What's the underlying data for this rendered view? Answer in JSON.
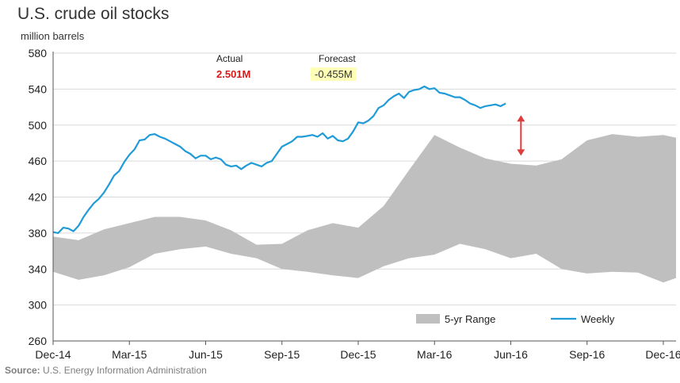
{
  "title": "U.S. crude oil stocks",
  "ylabel": "million barrels",
  "source_label": "Source:",
  "source_text": "U.S. Energy Information Administration",
  "annotations": {
    "actual_label": "Actual",
    "actual_value": "2.501M",
    "forecast_label": "Forecast",
    "forecast_value": "-0.455M"
  },
  "colors": {
    "weekly": "#1f9bd7",
    "range": "#bfbfbf",
    "arrow": "#e03c3c"
  },
  "chart_data": {
    "type": "line",
    "title": "U.S. crude oil stocks",
    "ylabel": "million barrels",
    "ylim": [
      260,
      580
    ],
    "yticks": [
      260,
      300,
      340,
      380,
      420,
      460,
      500,
      540,
      580
    ],
    "xlim": [
      0,
      24.5
    ],
    "xticks": [
      {
        "x": 0,
        "label": "Dec-14"
      },
      {
        "x": 3,
        "label": "Mar-15"
      },
      {
        "x": 6,
        "label": "Jun-15"
      },
      {
        "x": 9,
        "label": "Sep-15"
      },
      {
        "x": 12,
        "label": "Dec-15"
      },
      {
        "x": 15,
        "label": "Mar-16"
      },
      {
        "x": 18,
        "label": "Jun-16"
      },
      {
        "x": 21,
        "label": "Sep-16"
      },
      {
        "x": 24,
        "label": "Dec-16"
      }
    ],
    "grid": "horizontal",
    "legend_position": "bottom-right",
    "series": [
      {
        "name": "Weekly",
        "type": "line",
        "points": [
          [
            0,
            381
          ],
          [
            0.2,
            380
          ],
          [
            0.4,
            386
          ],
          [
            0.6,
            385
          ],
          [
            0.8,
            382
          ],
          [
            1.0,
            388
          ],
          [
            1.2,
            398
          ],
          [
            1.4,
            406
          ],
          [
            1.6,
            413
          ],
          [
            1.8,
            418
          ],
          [
            2.0,
            425
          ],
          [
            2.2,
            434
          ],
          [
            2.4,
            444
          ],
          [
            2.6,
            449
          ],
          [
            2.8,
            459
          ],
          [
            3.0,
            467
          ],
          [
            3.2,
            473
          ],
          [
            3.4,
            483
          ],
          [
            3.6,
            484
          ],
          [
            3.8,
            489
          ],
          [
            4.0,
            490
          ],
          [
            4.2,
            487
          ],
          [
            4.4,
            485
          ],
          [
            4.6,
            482
          ],
          [
            4.8,
            479
          ],
          [
            5.0,
            476
          ],
          [
            5.2,
            471
          ],
          [
            5.4,
            468
          ],
          [
            5.6,
            463
          ],
          [
            5.8,
            466
          ],
          [
            6.0,
            466
          ],
          [
            6.2,
            462
          ],
          [
            6.4,
            464
          ],
          [
            6.6,
            462
          ],
          [
            6.8,
            456
          ],
          [
            7.0,
            454
          ],
          [
            7.2,
            455
          ],
          [
            7.4,
            451
          ],
          [
            7.6,
            455
          ],
          [
            7.8,
            458
          ],
          [
            8.0,
            456
          ],
          [
            8.2,
            454
          ],
          [
            8.4,
            458
          ],
          [
            8.6,
            460
          ],
          [
            8.8,
            468
          ],
          [
            9.0,
            476
          ],
          [
            9.2,
            479
          ],
          [
            9.4,
            482
          ],
          [
            9.6,
            487
          ],
          [
            9.8,
            487
          ],
          [
            10.0,
            488
          ],
          [
            10.2,
            489
          ],
          [
            10.4,
            487
          ],
          [
            10.6,
            491
          ],
          [
            10.8,
            485
          ],
          [
            11.0,
            488
          ],
          [
            11.2,
            483
          ],
          [
            11.4,
            482
          ],
          [
            11.6,
            485
          ],
          [
            11.8,
            493
          ],
          [
            12.0,
            503
          ],
          [
            12.2,
            502
          ],
          [
            12.4,
            505
          ],
          [
            12.6,
            510
          ],
          [
            12.8,
            519
          ],
          [
            13.0,
            522
          ],
          [
            13.2,
            528
          ],
          [
            13.4,
            532
          ],
          [
            13.6,
            535
          ],
          [
            13.8,
            530
          ],
          [
            14.0,
            537
          ],
          [
            14.2,
            539
          ],
          [
            14.4,
            540
          ],
          [
            14.6,
            543
          ],
          [
            14.8,
            540
          ],
          [
            15.0,
            541
          ],
          [
            15.2,
            536
          ],
          [
            15.4,
            535
          ],
          [
            15.6,
            533
          ],
          [
            15.8,
            531
          ],
          [
            16.0,
            531
          ],
          [
            16.2,
            528
          ],
          [
            16.4,
            524
          ],
          [
            16.6,
            522
          ],
          [
            16.8,
            519
          ],
          [
            17.0,
            521
          ],
          [
            17.2,
            522
          ],
          [
            17.4,
            523
          ],
          [
            17.6,
            521
          ],
          [
            17.8,
            524
          ]
        ]
      },
      {
        "name": "5-yr Range",
        "type": "band",
        "x": [
          0,
          1,
          2,
          3,
          4,
          5,
          6,
          7,
          8,
          9,
          10,
          11,
          12,
          13,
          14,
          15,
          16,
          17,
          18,
          19,
          20,
          21,
          22,
          23,
          24,
          24.5
        ],
        "upper": [
          376,
          372,
          384,
          391,
          398,
          398,
          394,
          383,
          367,
          368,
          383,
          391,
          386,
          410,
          450,
          489,
          475,
          463,
          457,
          455,
          462,
          483,
          490,
          487,
          489,
          486
        ],
        "lower": [
          337,
          328,
          333,
          342,
          357,
          362,
          365,
          357,
          352,
          340,
          337,
          333,
          330,
          343,
          352,
          356,
          368,
          362,
          352,
          357,
          340,
          335,
          337,
          336,
          325,
          330
        ]
      }
    ],
    "arrow": {
      "x": 18.4,
      "from": 511,
      "to": 466
    }
  }
}
